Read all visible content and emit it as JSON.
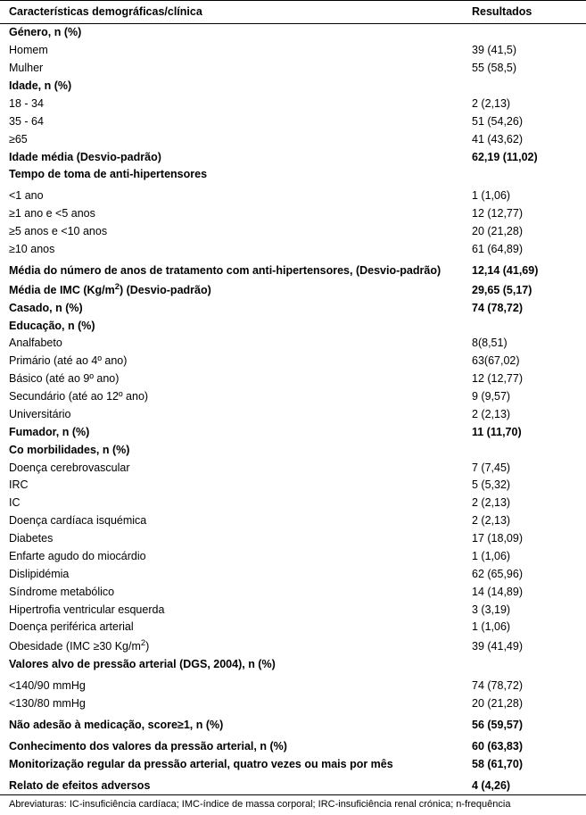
{
  "type": "table",
  "background_color": "#ffffff",
  "text_color": "#000000",
  "border_color": "#000000",
  "font_family": "Verdana",
  "body_fontsize": 12.5,
  "footnote_fontsize": 11,
  "col_result_width": 120,
  "header": {
    "label": "Características demográficas/clínica",
    "result": "Resultados"
  },
  "rows": [
    {
      "label": "Género, n (%)",
      "result": "",
      "bold": true
    },
    {
      "label": "Homem",
      "result": "39 (41,5)"
    },
    {
      "label": "Mulher",
      "result": "55 (58,5)"
    },
    {
      "label": "Idade, n (%)",
      "result": "",
      "bold": true
    },
    {
      "label": "18 - 34",
      "result": "2 (2,13)"
    },
    {
      "label": "35 - 64",
      "result": "51 (54,26)"
    },
    {
      "label": "≥65",
      "result": "41 (43,62)"
    },
    {
      "label": "Idade média (Desvio-padrão)",
      "result": "62,19 (11,02)",
      "bold": true
    },
    {
      "label": "Tempo de toma de anti-hipertensores",
      "result": "",
      "bold": true,
      "gap_after": true
    },
    {
      "label": "<1 ano",
      "result": "1 (1,06)"
    },
    {
      "label": "≥1 ano e <5 anos",
      "result": "12 (12,77)"
    },
    {
      "label": "≥5 anos e <10 anos",
      "result": "20 (21,28)"
    },
    {
      "label": "≥10 anos",
      "result": "61 (64,89)",
      "gap_after": true
    },
    {
      "label": "Média do número de anos de tratamento com anti-hipertensores, (Desvio-padrão)",
      "result": "12,14 (41,69)",
      "bold": true
    },
    {
      "label_html": "Média de IMC (Kg/m<span class=\"sup\">2</span>) (Desvio-padrão)",
      "result": "29,65 (5,17)",
      "bold": true
    },
    {
      "label": "Casado, n (%)",
      "result": "74 (78,72)",
      "bold": true
    },
    {
      "label": "Educação, n (%)",
      "result": "",
      "bold": true
    },
    {
      "label": "Analfabeto",
      "result": "8(8,51)"
    },
    {
      "label": "Primário (até ao 4º ano)",
      "result": "63(67,02)"
    },
    {
      "label": "Básico (até ao 9º ano)",
      "result": "12 (12,77)"
    },
    {
      "label": "Secundário (até ao 12º ano)",
      "result": "9 (9,57)"
    },
    {
      "label": "Universitário",
      "result": "2 (2,13)"
    },
    {
      "label": "Fumador, n (%)",
      "result": "11 (11,70)",
      "bold": true
    },
    {
      "label": "Co morbilidades, n (%)",
      "result": "",
      "bold": true
    },
    {
      "label": "Doença cerebrovascular",
      "result": "7 (7,45)"
    },
    {
      "label": "IRC",
      "result": "5 (5,32)"
    },
    {
      "label": "IC",
      "result": "2 (2,13)"
    },
    {
      "label": "Doença cardíaca isquémica",
      "result": "2 (2,13)"
    },
    {
      "label": "Diabetes",
      "result": "17 (18,09)"
    },
    {
      "label": "Enfarte agudo do miocárdio",
      "result": "1 (1,06)"
    },
    {
      "label": "Dislipidémia",
      "result": "62 (65,96)"
    },
    {
      "label": "Síndrome metabólico",
      "result": "14 (14,89)"
    },
    {
      "label": "Hipertrofia ventricular esquerda",
      "result": "3 (3,19)"
    },
    {
      "label": "Doença periférica arterial",
      "result": "1 (1,06)"
    },
    {
      "label_html": "Obesidade (IMC ≥30 Kg/m<span class=\"sup\">2</span>)",
      "result": "39 (41,49)"
    },
    {
      "label": "Valores alvo de pressão arterial (DGS, 2004), n (%)",
      "result": "",
      "bold": true,
      "gap_after": true
    },
    {
      "label": "<140/90 mmHg",
      "result": "74 (78,72)"
    },
    {
      "label": "<130/80 mmHg",
      "result": "20 (21,28)",
      "gap_after": true
    },
    {
      "label": "Não adesão à medicação, score≥1, n (%)",
      "result": "56 (59,57)",
      "bold": true,
      "gap_after": true
    },
    {
      "label": "Conhecimento dos valores da pressão arterial, n (%)",
      "result": "60 (63,83)",
      "bold": true
    },
    {
      "label": "Monitorização regular da pressão arterial, quatro vezes ou mais por mês",
      "result": "58 (61,70)",
      "bold": true,
      "gap_after": true
    },
    {
      "label": "Relato de efeitos adversos",
      "result": "4 (4,26)",
      "bold": true
    }
  ],
  "footnote": "Abreviaturas: IC-insuficiência cardíaca; IMC-índice de massa corporal; IRC-insuficiência renal crónica; n-frequência"
}
